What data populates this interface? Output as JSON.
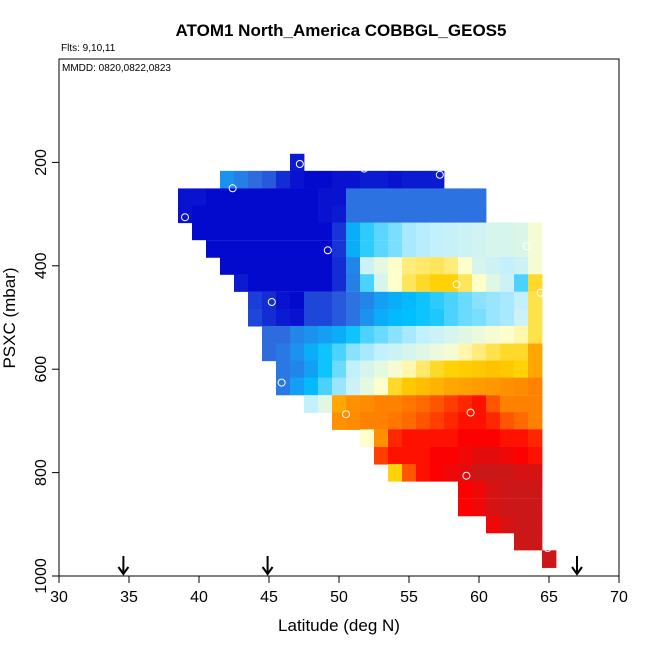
{
  "chart_data": {
    "type": "heatmap",
    "title": "ATOM1 North_America COBBGL_GEOS5",
    "notes": [
      "Flts: 9,10,11",
      "MMDD: 0820,0822,0823"
    ],
    "xlabel": "Latitude (deg N)",
    "ylabel": "PSXC (mbar)",
    "xlim": [
      30,
      70
    ],
    "ylim": [
      1000,
      0
    ],
    "y_inverted": true,
    "x_ticks": [
      30,
      35,
      40,
      45,
      50,
      55,
      60,
      65,
      70
    ],
    "y_ticks": [
      200,
      400,
      600,
      800,
      1000
    ],
    "grid": false,
    "legend": "none",
    "cell_size": {
      "dlat": 1,
      "dp": 33.33
    },
    "row_pressures": [
      200,
      233,
      267,
      300,
      333,
      367,
      400,
      433,
      467,
      500,
      533,
      567,
      600,
      633,
      667,
      700,
      733,
      767,
      800,
      833,
      867,
      900,
      933,
      967
    ],
    "colormap": [
      "#0000CC",
      "#2F6FE0",
      "#00BFFF",
      "#BFEFFF",
      "#FFFFCC",
      "#FFD000",
      "#FF8C00",
      "#FF0000",
      "#B22222"
    ],
    "value_range": [
      0,
      1
    ],
    "rows": [
      {
        "p": 200,
        "start": 47,
        "values": [
          0.03
        ]
      },
      {
        "p": 233,
        "start": 42,
        "values": [
          0.18,
          0.15,
          0.12,
          0.1,
          0.05,
          0.02,
          0.01,
          0.01,
          0.02,
          0.02,
          0.03,
          0.03,
          0.02,
          0.03,
          0.03,
          0.03
        ]
      },
      {
        "p": 267,
        "start": 39,
        "values": [
          0.02,
          0.02,
          0.01,
          0.01,
          0.01,
          0.01,
          0.01,
          0.01,
          0.01,
          0.01,
          0.02,
          0.02,
          0.13,
          0.13,
          0.13,
          0.13,
          0.13,
          0.13,
          0.13,
          0.13,
          0.13,
          0.13
        ]
      },
      {
        "p": 300,
        "start": 39,
        "values": [
          0.02,
          0.01,
          0.01,
          0.01,
          0.01,
          0.01,
          0.01,
          0.01,
          0.01,
          0.01,
          0.02,
          0.03,
          0.13,
          0.13,
          0.13,
          0.13,
          0.13,
          0.13,
          0.13,
          0.13,
          0.13,
          0.13
        ]
      },
      {
        "p": 333,
        "start": 40,
        "values": [
          0.01,
          0.01,
          0.01,
          0.01,
          0.01,
          0.01,
          0.01,
          0.01,
          0.01,
          0.01,
          0.06,
          0.22,
          0.28,
          0.31,
          0.33,
          0.36,
          0.37,
          0.38,
          0.39,
          0.4,
          0.41,
          0.42,
          0.42,
          0.43,
          0.48
        ]
      },
      {
        "p": 367,
        "start": 41,
        "values": [
          0.01,
          0.01,
          0.01,
          0.01,
          0.01,
          0.01,
          0.01,
          0.01,
          0.01,
          0.06,
          0.22,
          0.28,
          0.31,
          0.33,
          0.36,
          0.37,
          0.38,
          0.39,
          0.4,
          0.41,
          0.42,
          0.42,
          0.43,
          0.48
        ]
      },
      {
        "p": 400,
        "start": 42,
        "values": [
          0.01,
          0.01,
          0.01,
          0.01,
          0.01,
          0.01,
          0.01,
          0.01,
          0.05,
          0.16,
          0.4,
          0.45,
          0.5,
          0.55,
          0.56,
          0.57,
          0.55,
          0.5,
          0.42,
          0.4,
          0.38,
          0.4,
          0.48
        ]
      },
      {
        "p": 433,
        "start": 43,
        "values": [
          0.03,
          0.01,
          0.01,
          0.01,
          0.01,
          0.01,
          0.01,
          0.05,
          0.15,
          0.3,
          0.42,
          0.5,
          0.57,
          0.6,
          0.62,
          0.62,
          0.57,
          0.5,
          0.44,
          0.4,
          0.3,
          0.6
        ]
      },
      {
        "p": 467,
        "start": 44,
        "values": [
          0.07,
          0.05,
          0.02,
          0.01,
          0.08,
          0.08,
          0.1,
          0.13,
          0.16,
          0.2,
          0.22,
          0.24,
          0.26,
          0.28,
          0.3,
          0.32,
          0.34,
          0.35,
          0.36,
          0.38,
          0.58
        ]
      },
      {
        "p": 500,
        "start": 44,
        "values": [
          0.08,
          0.05,
          0.03,
          0.02,
          0.08,
          0.08,
          0.1,
          0.13,
          0.18,
          0.22,
          0.24,
          0.25,
          0.26,
          0.27,
          0.3,
          0.32,
          0.33,
          0.35,
          0.36,
          0.4,
          0.58
        ]
      },
      {
        "p": 533,
        "start": 45,
        "values": [
          0.12,
          0.12,
          0.16,
          0.18,
          0.2,
          0.22,
          0.26,
          0.3,
          0.32,
          0.34,
          0.36,
          0.38,
          0.4,
          0.42,
          0.44,
          0.46,
          0.48,
          0.5,
          0.52,
          0.58
        ]
      },
      {
        "p": 567,
        "start": 45,
        "values": [
          0.12,
          0.14,
          0.18,
          0.22,
          0.26,
          0.3,
          0.34,
          0.36,
          0.38,
          0.4,
          0.42,
          0.44,
          0.46,
          0.48,
          0.52,
          0.55,
          0.58,
          0.6,
          0.6,
          0.7
        ]
      },
      {
        "p": 600,
        "start": 46,
        "values": [
          0.14,
          0.16,
          0.2,
          0.26,
          0.32,
          0.38,
          0.42,
          0.45,
          0.48,
          0.52,
          0.56,
          0.6,
          0.62,
          0.63,
          0.64,
          0.65,
          0.64,
          0.62,
          0.7
        ]
      },
      {
        "p": 633,
        "start": 46,
        "values": [
          0.14,
          0.2,
          0.24,
          0.3,
          0.35,
          0.4,
          0.45,
          0.5,
          0.6,
          0.64,
          0.66,
          0.68,
          0.7,
          0.71,
          0.72,
          0.73,
          0.74,
          0.75,
          0.76
        ]
      },
      {
        "p": 667,
        "start": 48,
        "values": [
          0.38,
          0.44,
          0.7,
          0.74,
          0.75,
          0.76,
          0.76,
          0.77,
          0.78,
          0.8,
          0.82,
          0.84,
          0.86,
          0.8,
          0.76,
          0.76,
          0.76
        ]
      },
      {
        "p": 700,
        "start": 50,
        "values": [
          0.74,
          0.75,
          0.76,
          0.76,
          0.77,
          0.78,
          0.8,
          0.82,
          0.84,
          0.86,
          0.86,
          0.84,
          0.8,
          0.78,
          0.76
        ]
      },
      {
        "p": 733,
        "start": 52,
        "values": [
          0.5,
          0.74,
          0.84,
          0.86,
          0.86,
          0.86,
          0.86,
          0.88,
          0.88,
          0.88,
          0.86,
          0.86,
          0.84
        ]
      },
      {
        "p": 767,
        "start": 53,
        "values": [
          0.82,
          0.86,
          0.86,
          0.86,
          0.88,
          0.88,
          0.9,
          0.92,
          0.92,
          0.9,
          0.88,
          0.86
        ]
      },
      {
        "p": 800,
        "start": 54,
        "values": [
          0.62,
          0.8,
          0.86,
          0.88,
          0.9,
          0.92,
          0.96,
          0.96,
          0.96,
          0.94,
          0.94
        ]
      },
      {
        "p": 833,
        "start": 59,
        "values": [
          0.88,
          0.9,
          0.94,
          0.96,
          0.96,
          0.96
        ]
      },
      {
        "p": 867,
        "start": 59,
        "values": [
          0.88,
          0.9,
          0.94,
          0.96,
          0.96,
          0.96
        ]
      },
      {
        "p": 900,
        "start": 61,
        "values": [
          0.9,
          0.94,
          0.96,
          0.96
        ]
      },
      {
        "p": 933,
        "start": 63,
        "values": [
          0.96,
          0.96
        ]
      },
      {
        "p": 967,
        "start": 65,
        "values": [
          0.96
        ]
      }
    ],
    "circles": [
      {
        "lat": 47.2,
        "p": 203
      },
      {
        "lat": 51.8,
        "p": 212
      },
      {
        "lat": 57.2,
        "p": 224
      },
      {
        "lat": 42.4,
        "p": 250
      },
      {
        "lat": 39.0,
        "p": 306
      },
      {
        "lat": 49.2,
        "p": 370
      },
      {
        "lat": 63.4,
        "p": 362
      },
      {
        "lat": 58.4,
        "p": 436
      },
      {
        "lat": 64.4,
        "p": 452
      },
      {
        "lat": 45.2,
        "p": 470
      },
      {
        "lat": 45.9,
        "p": 626
      },
      {
        "lat": 50.5,
        "p": 687
      },
      {
        "lat": 59.4,
        "p": 684
      },
      {
        "lat": 65.3,
        "p": 782
      },
      {
        "lat": 59.1,
        "p": 806
      },
      {
        "lat": 64.9,
        "p": 946
      }
    ],
    "arrows": [
      34.6,
      44.9,
      67.0
    ]
  }
}
